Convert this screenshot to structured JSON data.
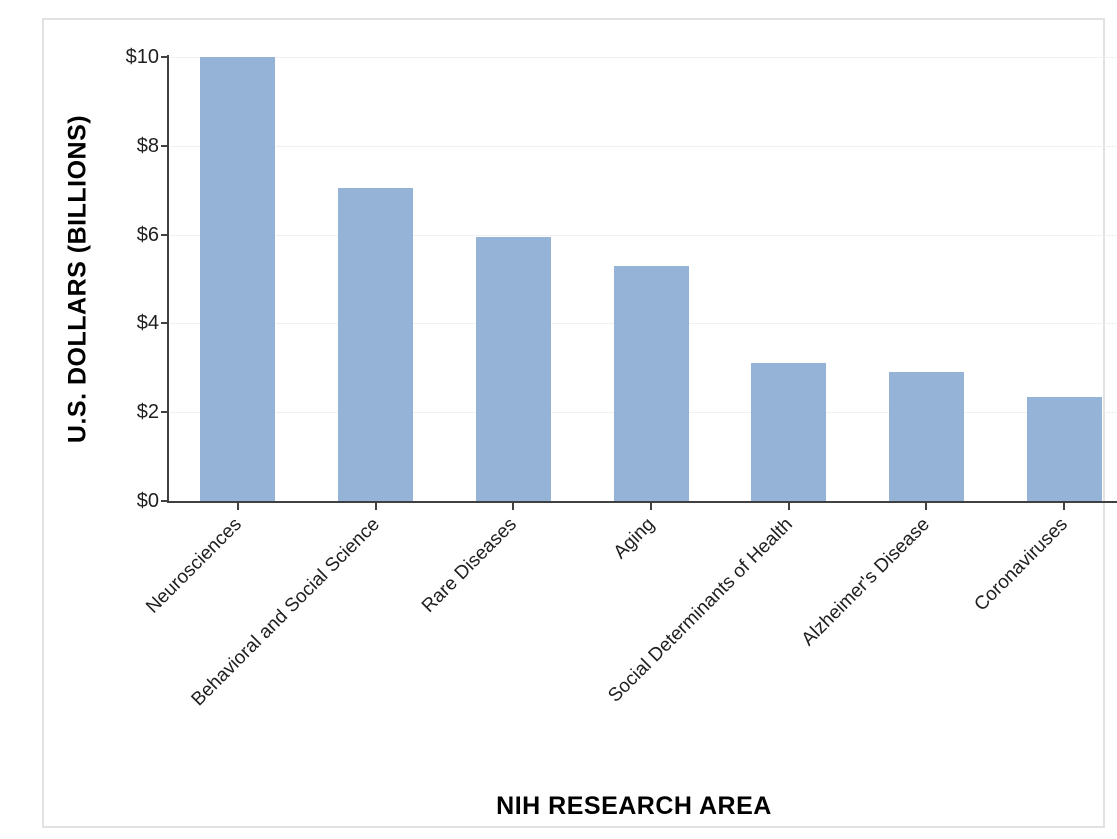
{
  "chart_data": {
    "type": "bar",
    "title": "",
    "xlabel": "NIH RESEARCH AREA",
    "ylabel": "U.S. DOLLARS (BILLIONS)",
    "categories": [
      "Neurosciences",
      "Behavioral and Social Science",
      "Rare Diseases",
      "Aging",
      "Social Determinants of Health",
      "Alzheimer's Disease",
      "Coronaviruses"
    ],
    "values": [
      10.0,
      7.05,
      5.95,
      5.3,
      3.1,
      2.9,
      2.35
    ],
    "ylim": [
      0,
      10
    ],
    "yticks": [
      0,
      2,
      4,
      6,
      8,
      10
    ],
    "ytick_labels": [
      "$0",
      "$2",
      "$4",
      "$6",
      "$8",
      "$10"
    ],
    "grid": true,
    "legend": false,
    "colors": {
      "bar": "#95B3D7",
      "axis": "#404040",
      "gridline": "#F0F0F0",
      "text": "#1F1F1F",
      "frame_border": "#E2E2E2",
      "background": "#FFFFFF"
    }
  }
}
